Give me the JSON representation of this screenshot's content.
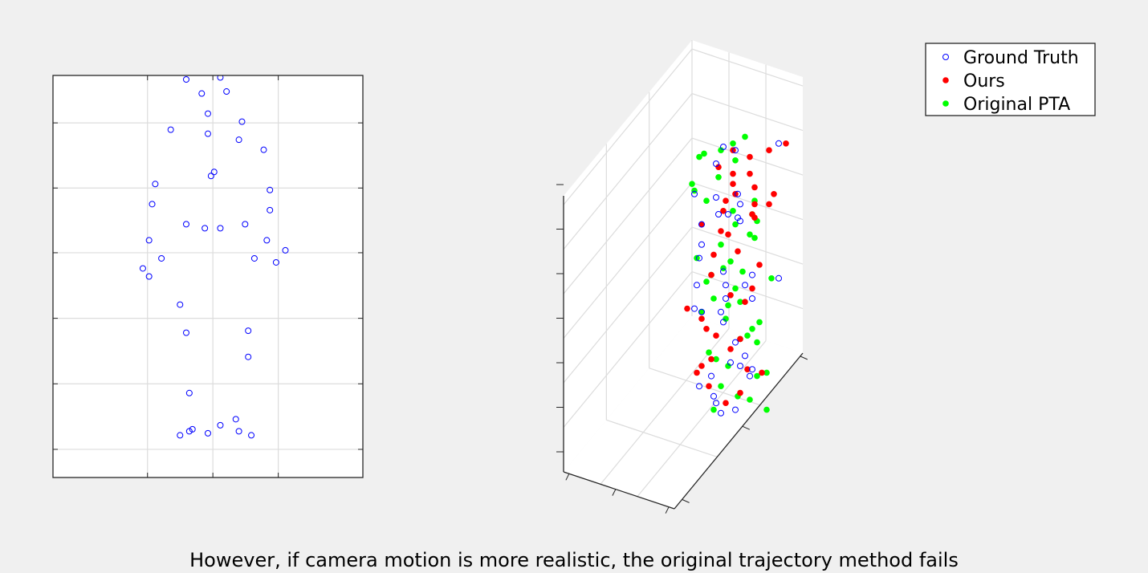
{
  "figure": {
    "caption": "However, if camera motion is more realistic, the original trajectory method fails",
    "background": "#f0f0f0"
  },
  "chart_data": [
    {
      "type": "scatter",
      "panel": "2d-view",
      "title": "",
      "xlabel": "",
      "ylabel": "",
      "xlim": [
        0,
        1.0
      ],
      "ylim": [
        0,
        1.0
      ],
      "grid": true,
      "tick_labels": false,
      "x_ticks": [
        0.305,
        0.516,
        0.727
      ],
      "y_ticks": [
        0.07,
        0.233,
        0.396,
        0.559,
        0.72,
        0.882
      ],
      "marker": "open-circle",
      "color": "#0000ff",
      "series": [
        {
          "name": "Ground Truth",
          "points": [
            [
              0.43,
              0.99
            ],
            [
              0.54,
              0.995
            ],
            [
              0.48,
              0.955
            ],
            [
              0.56,
              0.96
            ],
            [
              0.5,
              0.905
            ],
            [
              0.61,
              0.885
            ],
            [
              0.38,
              0.865
            ],
            [
              0.5,
              0.855
            ],
            [
              0.6,
              0.84
            ],
            [
              0.68,
              0.815
            ],
            [
              0.52,
              0.76
            ],
            [
              0.51,
              0.75
            ],
            [
              0.33,
              0.73
            ],
            [
              0.7,
              0.715
            ],
            [
              0.32,
              0.68
            ],
            [
              0.7,
              0.665
            ],
            [
              0.43,
              0.63
            ],
            [
              0.49,
              0.62
            ],
            [
              0.54,
              0.62
            ],
            [
              0.62,
              0.63
            ],
            [
              0.31,
              0.59
            ],
            [
              0.69,
              0.59
            ],
            [
              0.75,
              0.565
            ],
            [
              0.35,
              0.545
            ],
            [
              0.65,
              0.545
            ],
            [
              0.72,
              0.535
            ],
            [
              0.29,
              0.52
            ],
            [
              0.31,
              0.5
            ],
            [
              0.41,
              0.43
            ],
            [
              0.43,
              0.36
            ],
            [
              0.63,
              0.365
            ],
            [
              0.63,
              0.3
            ],
            [
              0.44,
              0.21
            ],
            [
              0.59,
              0.145
            ],
            [
              0.54,
              0.13
            ],
            [
              0.45,
              0.12
            ],
            [
              0.44,
              0.115
            ],
            [
              0.5,
              0.11
            ],
            [
              0.6,
              0.115
            ],
            [
              0.64,
              0.105
            ],
            [
              0.41,
              0.105
            ]
          ]
        }
      ]
    },
    {
      "type": "scatter",
      "panel": "3d-view",
      "title": "",
      "xlabel": "",
      "ylabel": "",
      "zlabel": "",
      "grid": true,
      "tick_labels": false,
      "legend": {
        "placement": "top-right",
        "entries": [
          {
            "label": "Ground Truth",
            "marker": "open-circle",
            "color": "#0000ff"
          },
          {
            "label": "Ours",
            "marker": "filled-dot",
            "color": "#ff0000"
          },
          {
            "label": "Original PTA",
            "marker": "filled-dot",
            "color": "#00ff00"
          }
        ]
      },
      "projected_series": [
        {
          "name": "Ground Truth",
          "points": [
            [
              0.9,
              0.14
            ],
            [
              0.67,
              0.15
            ],
            [
              0.64,
              0.2
            ],
            [
              0.72,
              0.16
            ],
            [
              0.55,
              0.29
            ],
            [
              0.73,
              0.29
            ],
            [
              0.64,
              0.3
            ],
            [
              0.74,
              0.32
            ],
            [
              0.69,
              0.35
            ],
            [
              0.65,
              0.35
            ],
            [
              0.73,
              0.36
            ],
            [
              0.74,
              0.37
            ],
            [
              0.58,
              0.38
            ],
            [
              0.58,
              0.44
            ],
            [
              0.57,
              0.48
            ],
            [
              0.67,
              0.52
            ],
            [
              0.79,
              0.53
            ],
            [
              0.9,
              0.54
            ],
            [
              0.56,
              0.56
            ],
            [
              0.68,
              0.56
            ],
            [
              0.76,
              0.56
            ],
            [
              0.68,
              0.6
            ],
            [
              0.79,
              0.6
            ],
            [
              0.55,
              0.63
            ],
            [
              0.58,
              0.64
            ],
            [
              0.66,
              0.64
            ],
            [
              0.67,
              0.67
            ],
            [
              0.72,
              0.73
            ],
            [
              0.76,
              0.77
            ],
            [
              0.7,
              0.79
            ],
            [
              0.74,
              0.8
            ],
            [
              0.79,
              0.81
            ],
            [
              0.62,
              0.83
            ],
            [
              0.78,
              0.83
            ],
            [
              0.57,
              0.86
            ],
            [
              0.63,
              0.89
            ],
            [
              0.64,
              0.91
            ],
            [
              0.72,
              0.93
            ],
            [
              0.66,
              0.94
            ]
          ]
        },
        {
          "name": "Ours",
          "points": [
            [
              0.93,
              0.14
            ],
            [
              0.86,
              0.16
            ],
            [
              0.71,
              0.16
            ],
            [
              0.78,
              0.18
            ],
            [
              0.65,
              0.21
            ],
            [
              0.71,
              0.23
            ],
            [
              0.78,
              0.23
            ],
            [
              0.71,
              0.26
            ],
            [
              0.8,
              0.27
            ],
            [
              0.88,
              0.29
            ],
            [
              0.72,
              0.29
            ],
            [
              0.68,
              0.31
            ],
            [
              0.8,
              0.32
            ],
            [
              0.86,
              0.32
            ],
            [
              0.67,
              0.34
            ],
            [
              0.79,
              0.35
            ],
            [
              0.8,
              0.36
            ],
            [
              0.58,
              0.38
            ],
            [
              0.66,
              0.4
            ],
            [
              0.69,
              0.41
            ],
            [
              0.73,
              0.46
            ],
            [
              0.63,
              0.47
            ],
            [
              0.82,
              0.5
            ],
            [
              0.62,
              0.53
            ],
            [
              0.79,
              0.57
            ],
            [
              0.7,
              0.59
            ],
            [
              0.76,
              0.61
            ],
            [
              0.52,
              0.63
            ],
            [
              0.58,
              0.66
            ],
            [
              0.6,
              0.69
            ],
            [
              0.64,
              0.71
            ],
            [
              0.74,
              0.72
            ],
            [
              0.7,
              0.75
            ],
            [
              0.62,
              0.78
            ],
            [
              0.58,
              0.8
            ],
            [
              0.77,
              0.81
            ],
            [
              0.83,
              0.82
            ],
            [
              0.56,
              0.82
            ],
            [
              0.61,
              0.86
            ],
            [
              0.74,
              0.88
            ],
            [
              0.68,
              0.91
            ]
          ]
        },
        {
          "name": "Original PTA",
          "points": [
            [
              0.76,
              0.12
            ],
            [
              0.71,
              0.14
            ],
            [
              0.66,
              0.16
            ],
            [
              0.59,
              0.17
            ],
            [
              0.57,
              0.18
            ],
            [
              0.72,
              0.19
            ],
            [
              0.65,
              0.24
            ],
            [
              0.54,
              0.26
            ],
            [
              0.55,
              0.28
            ],
            [
              0.6,
              0.31
            ],
            [
              0.8,
              0.31
            ],
            [
              0.71,
              0.34
            ],
            [
              0.79,
              0.35
            ],
            [
              0.81,
              0.37
            ],
            [
              0.72,
              0.38
            ],
            [
              0.78,
              0.41
            ],
            [
              0.8,
              0.42
            ],
            [
              0.66,
              0.44
            ],
            [
              0.56,
              0.48
            ],
            [
              0.7,
              0.49
            ],
            [
              0.67,
              0.51
            ],
            [
              0.75,
              0.52
            ],
            [
              0.62,
              0.53
            ],
            [
              0.87,
              0.54
            ],
            [
              0.6,
              0.55
            ],
            [
              0.72,
              0.57
            ],
            [
              0.63,
              0.6
            ],
            [
              0.74,
              0.61
            ],
            [
              0.69,
              0.62
            ],
            [
              0.58,
              0.64
            ],
            [
              0.68,
              0.66
            ],
            [
              0.82,
              0.67
            ],
            [
              0.79,
              0.69
            ],
            [
              0.77,
              0.71
            ],
            [
              0.74,
              0.72
            ],
            [
              0.81,
              0.73
            ],
            [
              0.61,
              0.76
            ],
            [
              0.64,
              0.78
            ],
            [
              0.69,
              0.8
            ],
            [
              0.85,
              0.82
            ],
            [
              0.81,
              0.83
            ],
            [
              0.66,
              0.86
            ],
            [
              0.73,
              0.89
            ],
            [
              0.78,
              0.9
            ],
            [
              0.63,
              0.93
            ],
            [
              0.85,
              0.93
            ]
          ]
        }
      ]
    }
  ]
}
